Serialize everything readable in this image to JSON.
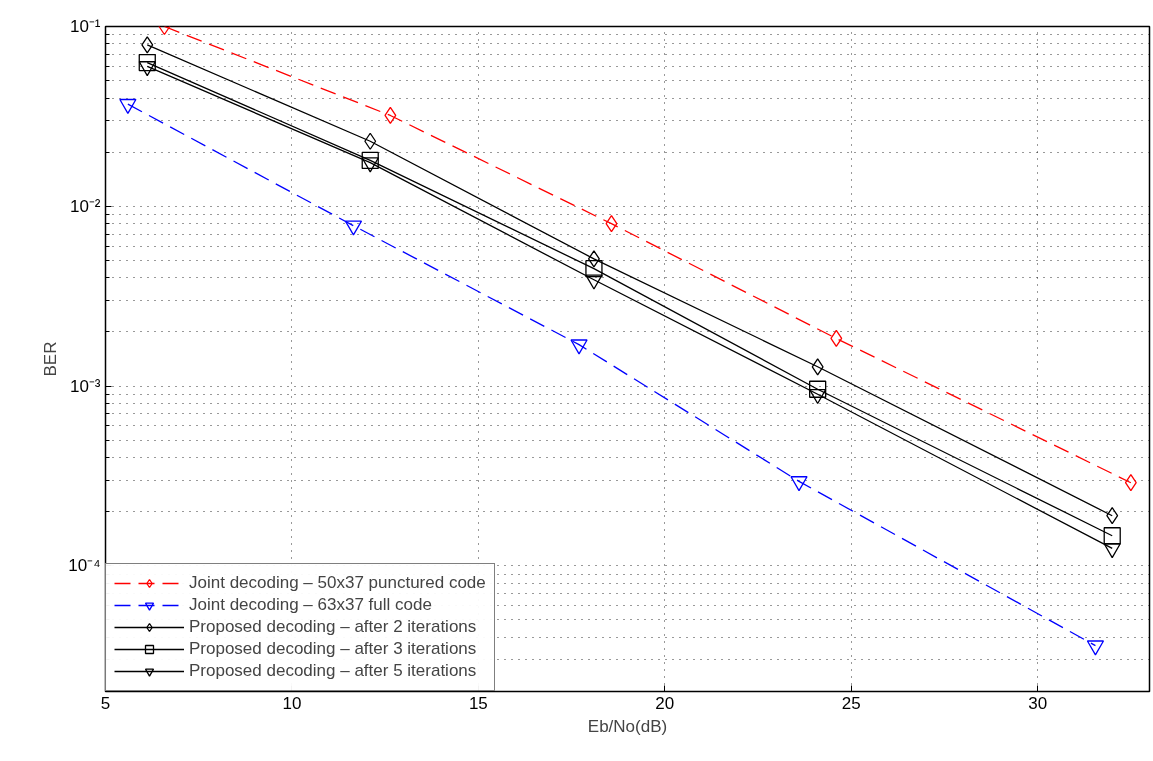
{
  "chart_data": {
    "type": "line",
    "xlabel": "Eb/No(dB)",
    "ylabel": "BER",
    "log": "y",
    "xlim": [
      5,
      33
    ],
    "ylim": [
      2e-05,
      0.1
    ],
    "xticks": [
      5,
      10,
      15,
      20,
      25,
      30
    ],
    "yticks": [
      {
        "value": 0.1,
        "label": "10⁻¹"
      },
      {
        "value": 0.01,
        "label": "10⁻²"
      },
      {
        "value": 0.001,
        "label": "10⁻³"
      },
      {
        "value": 0.0001,
        "label": "10⁻⁴"
      }
    ],
    "grid": true,
    "legend": "bottom left",
    "series": [
      {
        "name": "Joint decoding – 50x37 punctured code",
        "color": "#ff0000",
        "marker": "diamond",
        "line_style": "dashed",
        "x": [
          6.58,
          12.64,
          18.57,
          24.6,
          32.5
        ],
        "values": [
          0.1,
          0.032,
          0.008,
          0.00184,
          0.00029
        ]
      },
      {
        "name": "Joint decoding – 63x37 full code",
        "color": "#0000ff",
        "marker": "triangle",
        "line_style": "dashed",
        "x": [
          5.6,
          11.65,
          17.7,
          23.6,
          31.55
        ],
        "values": [
          0.037,
          0.0078,
          0.0017,
          0.000295,
          3.6e-05
        ]
      },
      {
        "name": "Proposed decoding – after 2 iterations",
        "color": "#000000",
        "marker": "diamond",
        "line_style": "solid",
        "x": [
          6.12,
          12.1,
          18.1,
          24.1,
          32.0
        ],
        "values": [
          0.079,
          0.023,
          0.0051,
          0.00128,
          0.00019
        ]
      },
      {
        "name": "Proposed decoding – after 3 iterations",
        "color": "#000000",
        "marker": "square",
        "line_style": "solid",
        "x": [
          6.12,
          12.1,
          18.1,
          24.1,
          32.0
        ],
        "values": [
          0.063,
          0.018,
          0.0045,
          0.00096,
          0.000147
        ]
      },
      {
        "name": "Proposed decoding – after 5 iterations",
        "color": "#000000",
        "marker": "triangle",
        "line_style": "solid",
        "x": [
          6.12,
          12.1,
          18.1,
          24.1,
          32.0
        ],
        "values": [
          0.06,
          0.0175,
          0.0039,
          0.0009,
          0.000125
        ]
      }
    ]
  }
}
